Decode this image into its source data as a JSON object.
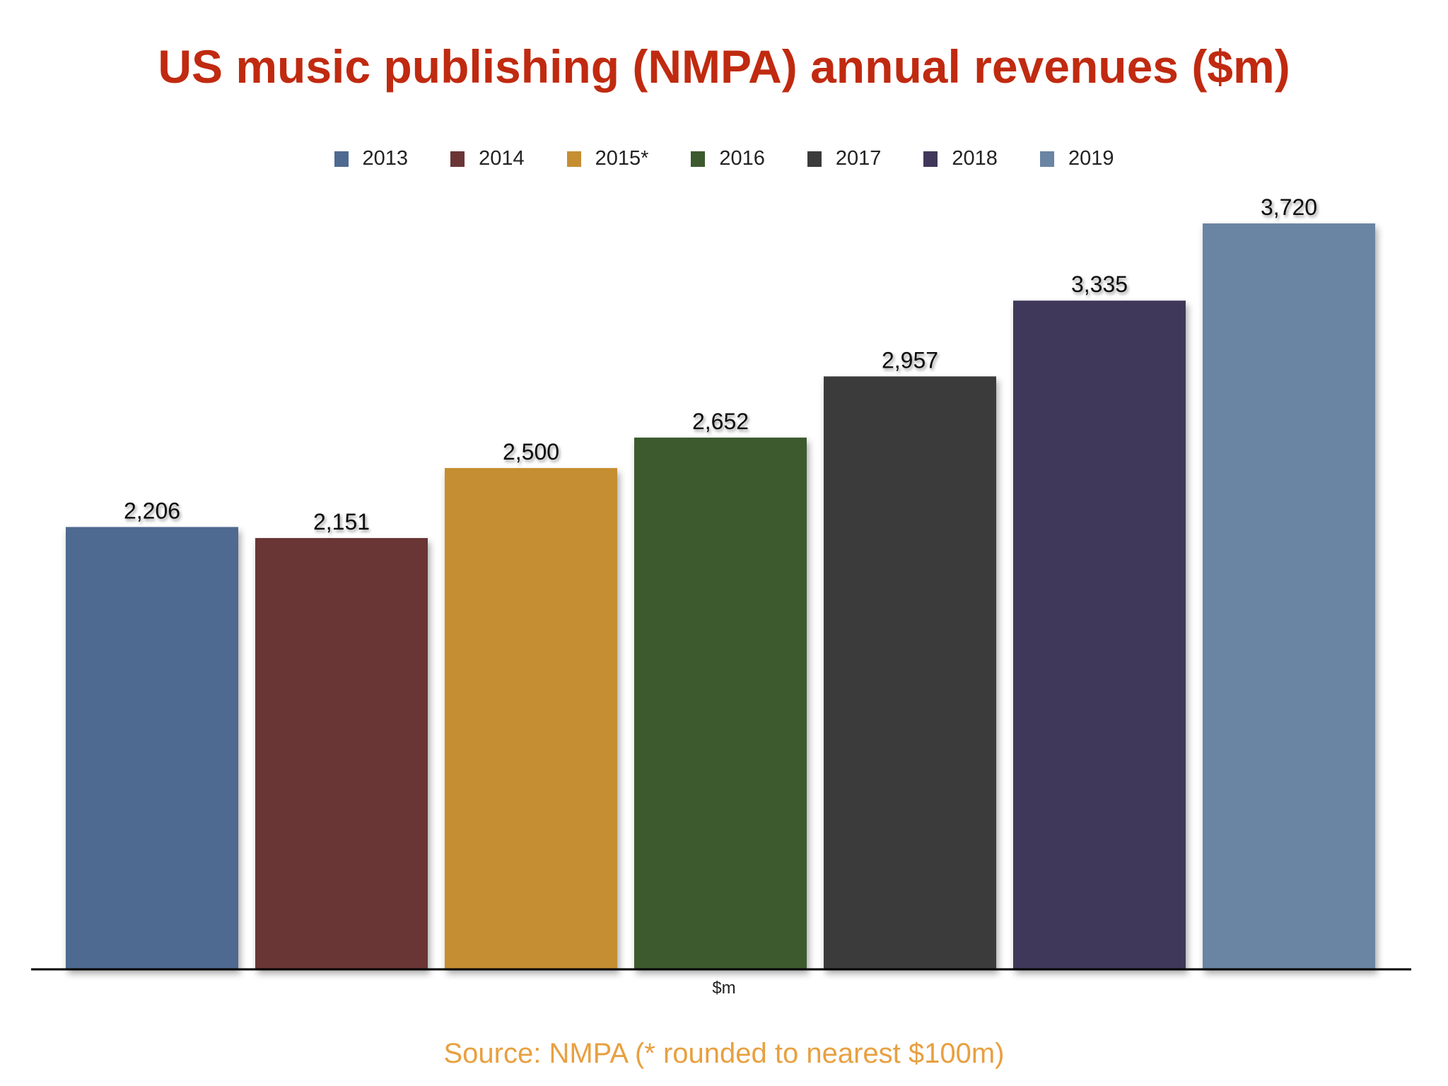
{
  "chart_data": {
    "type": "bar",
    "title": "US music publishing (NMPA) annual revenues ($m)",
    "categories": [
      "2013",
      "2014",
      "2015*",
      "2016",
      "2017",
      "2018",
      "2019"
    ],
    "values": [
      2206,
      2151,
      2500,
      2652,
      2957,
      3335,
      3720
    ],
    "data_labels": [
      "2,206",
      "2,151",
      "2,500",
      "2,652",
      "2,957",
      "3,335",
      "3,720"
    ],
    "colors": [
      "#4f6a91",
      "#6b3536",
      "#c68e33",
      "#3c5a2e",
      "#3b3b3b",
      "#41375a",
      "#6a84a3"
    ],
    "xlabel": "$m",
    "ylabel": "",
    "ylim": [
      0,
      3720
    ],
    "grid": false,
    "legend_position": "top",
    "source": "Source: NMPA (* rounded to nearest $100m)"
  }
}
